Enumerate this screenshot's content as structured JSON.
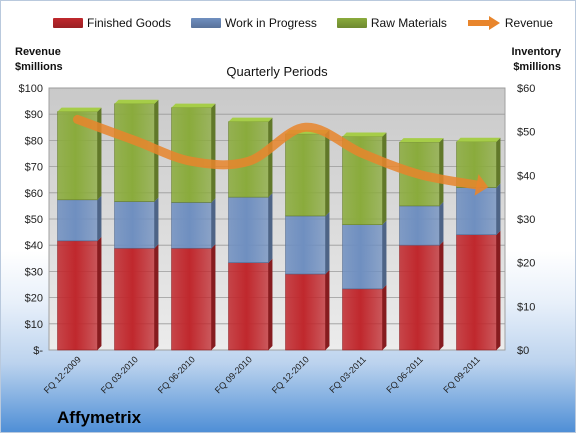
{
  "chart_data": {
    "type": "bar",
    "title": "Quarterly Periods",
    "company": "Affymetrix",
    "left_axis_title": [
      "Revenue",
      "$millions"
    ],
    "right_axis_title": [
      "Inventory",
      "$millions"
    ],
    "categories": [
      "FQ 12-2009",
      "FQ 03-2010",
      "FQ 06-2010",
      "FQ 09-2010",
      "FQ 12-2010",
      "FQ 03-2011",
      "FQ 06-2011",
      "FQ 09-2011"
    ],
    "stacked": true,
    "series": [
      {
        "name": "Finished Goods",
        "axis": "right",
        "color": "#c0282d",
        "values": [
          25,
          23.3,
          23.3,
          20,
          17.4,
          14,
          24,
          26.4
        ]
      },
      {
        "name": "Work in Progress",
        "axis": "right",
        "color": "#6f8fc0",
        "values": [
          9.4,
          10.7,
          10.5,
          15,
          13.3,
          14.7,
          9,
          10.8
        ]
      },
      {
        "name": "Raw Materials",
        "axis": "right",
        "color": "#8aab3c",
        "values": [
          20.2,
          22.4,
          21.7,
          17.3,
          18.8,
          20.2,
          14.6,
          10.5
        ]
      }
    ],
    "line_series": {
      "name": "Revenue",
      "axis": "left",
      "color": "#e8852c",
      "values": [
        88,
        80,
        72,
        72,
        85,
        75,
        67,
        63
      ]
    },
    "left_axis": {
      "min": 0,
      "max": 100,
      "step": 10,
      "tick_labels": [
        "$-",
        "$10",
        "$20",
        "$30",
        "$40",
        "$50",
        "$60",
        "$70",
        "$80",
        "$90",
        "$100"
      ]
    },
    "right_axis": {
      "min": 0,
      "max": 60,
      "step": 10,
      "tick_labels": [
        "$0",
        "$10",
        "$20",
        "$30",
        "$40",
        "$50",
        "$60"
      ]
    },
    "grid": true,
    "legend_position": "top"
  }
}
